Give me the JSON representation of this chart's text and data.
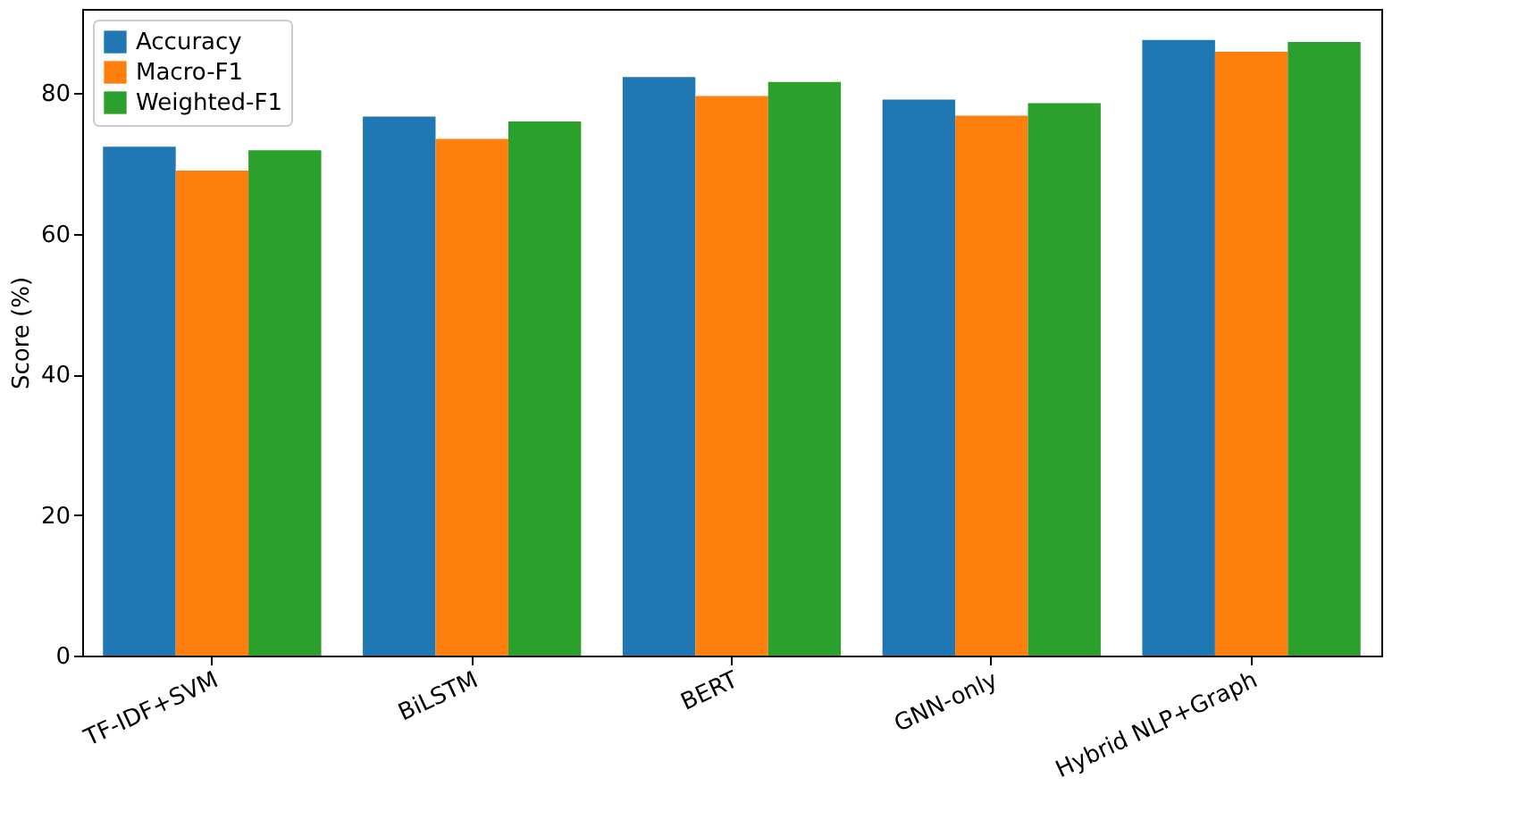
{
  "chart_data": {
    "type": "bar",
    "ylabel": "Score (%)",
    "categories": [
      "TF-IDF+SVM",
      "BiLSTM",
      "BERT",
      "GNN-only",
      "Hybrid NLP+Graph"
    ],
    "series": [
      {
        "name": "Accuracy",
        "color": "#1f77b4",
        "values": [
          72.4,
          76.7,
          82.3,
          79.1,
          87.6
        ]
      },
      {
        "name": "Macro-F1",
        "color": "#ff7f0e",
        "values": [
          69.0,
          73.5,
          79.6,
          76.8,
          85.9
        ]
      },
      {
        "name": "Weighted-F1",
        "color": "#2ca02c",
        "values": [
          71.9,
          76.0,
          81.6,
          78.6,
          87.3
        ]
      }
    ],
    "ylim": [
      0,
      92
    ],
    "yticks": [
      0,
      20,
      40,
      60,
      80
    ],
    "legend": "top left",
    "grid": false
  }
}
